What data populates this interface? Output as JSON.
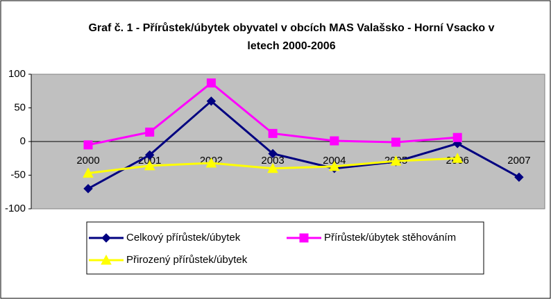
{
  "chart_data": {
    "type": "line",
    "title": "Graf č. 1 - Přírůstek/úbytek obyvatel v obcích MAS Valašsko - Horní Vsacko v letech 2000-2006",
    "categories": [
      "2000",
      "2001",
      "2002",
      "2003",
      "2004",
      "2005",
      "2006",
      "2007"
    ],
    "series": [
      {
        "name": "Celkový přírůstek/úbytek",
        "color": "#000080",
        "marker": "diamond",
        "values": [
          -70,
          -20,
          60,
          -18,
          -40,
          -30,
          -3,
          -53
        ]
      },
      {
        "name": "Přírůstek/úbytek stěhováním",
        "color": "#ff00ff",
        "marker": "square",
        "values": [
          -5,
          14,
          87,
          12,
          1,
          -1,
          6,
          null
        ]
      },
      {
        "name": "Přirozený přírůstek/úbytek",
        "color": "#ffff00",
        "marker": "triangle",
        "values": [
          -47,
          -36,
          -32,
          -40,
          -37,
          -29,
          -25,
          null
        ]
      }
    ],
    "ylim": [
      -100,
      100
    ],
    "yticks": [
      -100,
      -50,
      0,
      50,
      100
    ],
    "grid": false,
    "legend": "bottom"
  }
}
